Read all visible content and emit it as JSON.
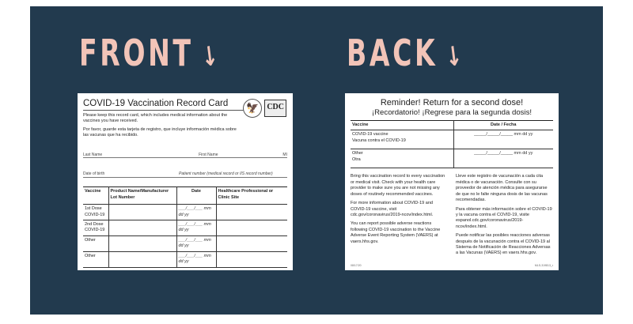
{
  "headings": {
    "front": "FRONT",
    "back": "BACK",
    "arrow": "↓"
  },
  "front": {
    "title": "COVID-19 Vaccination Record Card",
    "logo_text": "CDC",
    "note_en": "Please keep this record card, which includes medical information about the vaccines you have received.",
    "note_es": "Por favor, guarde esta tarjeta de registro, que incluye información médica sobre las vacunas que ha recibido.",
    "fields": {
      "last_name": "Last Name",
      "first_name": "First Name",
      "mi": "MI",
      "dob": "Date of birth",
      "patient_number": "Patient number (medical record or IIS record number)"
    },
    "table": {
      "headers": {
        "vaccine": "Vaccine",
        "product": "Product Name/Manufacturer",
        "lot": "Lot Number",
        "date": "Date",
        "site": "Healthcare Professional or Clinic Site"
      },
      "rows": [
        {
          "vaccine": "1st Dose COVID-19"
        },
        {
          "vaccine": "2nd Dose COVID-19"
        },
        {
          "vaccine": "Other"
        },
        {
          "vaccine": "Other"
        }
      ],
      "date_format": "___/___/___ mm dd yy"
    }
  },
  "back": {
    "title": "Reminder! Return for a second dose!",
    "subtitle": "¡Recordatorio! ¡Regrese para la segunda dosis!",
    "table": {
      "headers": {
        "vaccine": "Vaccine",
        "date": "Date / Fecha"
      },
      "rows": [
        {
          "vaccine": "COVID-19 vaccine",
          "vaccine_es": "Vacuna contra el COVID-19"
        },
        {
          "vaccine": "Other",
          "vaccine_es": "Otra"
        }
      ],
      "date_format": "_____/_____/_____ mm dd yy"
    },
    "en": [
      "Bring this vaccination record to every vaccination or medical visit. Check with your health care provider to make sure you are not missing any doses of routinely recommended vaccines.",
      "For more information about COVID-19 and COVID-19 vaccine, visit cdc.gov/coronavirus/2019-ncov/index.html.",
      "You can report possible adverse reactions following COVID-19 vaccination to the Vaccine Adverse Event Reporting System (VAERS) at vaers.hhs.gov."
    ],
    "es": [
      "Lleve este registro de vacunación a cada cita médica o de vacunación. Consulte con su proveedor de atención médica para asegurarse de que no le falte ninguna dosis de las vacunas recomendadas.",
      "Para obtener más información sobre el COVID-19 y la vacuna contra el COVID-19, visite espanol.cdc.gov/coronavirus/2019-ncov/index.html.",
      "Puede notificar las posibles reacciones adversas después de la vacunación contra el COVID-19 al Sistema de Notificación de Reacciones Adversas a las Vacunas (VAERS) en vaers.hhs.gov."
    ],
    "footer_left": "08/17/20",
    "footer_right": "MLS-319813_r"
  },
  "colors": {
    "background": "#223a4e",
    "heading": "#f2c4b8"
  }
}
